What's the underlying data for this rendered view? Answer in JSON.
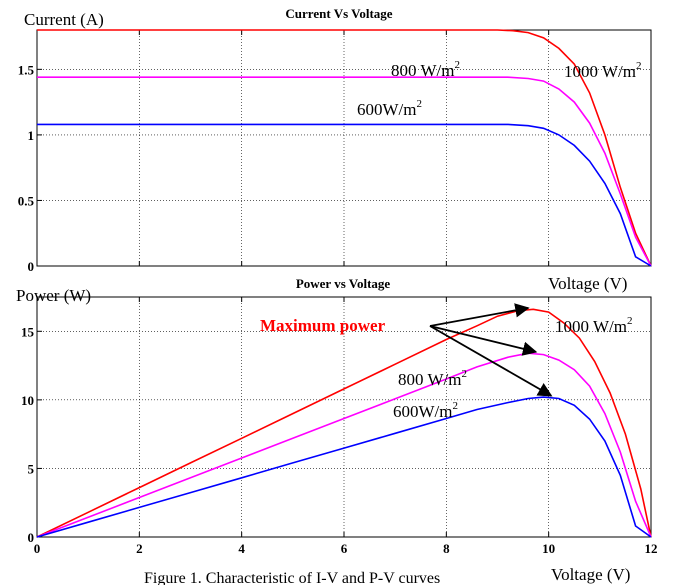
{
  "figure_caption": "Figure 1.   Characteristic of I-V and P-V curves",
  "colors": {
    "1000": "#ff0000",
    "800": "#ff00ff",
    "600": "#0000ff",
    "arrow": "#000000"
  },
  "chart_data": [
    {
      "type": "line",
      "title": "Current Vs Voltage",
      "ylabel": "Current (A)",
      "xlabel": "Voltage (V)",
      "xlim": [
        0,
        12
      ],
      "ylim": [
        0,
        1.8
      ],
      "yticks": [
        0,
        0.5,
        1,
        1.5
      ],
      "ytick_labels": [
        "0",
        "0.5",
        "1",
        "1.5"
      ],
      "grid": true,
      "annotations": [
        {
          "text": "1000 W/m",
          "sup": "2",
          "series": "1000"
        },
        {
          "text": "800 W/m",
          "sup": "2",
          "series": "800"
        },
        {
          "text": "600W/m",
          "sup": "2",
          "series": "600"
        }
      ],
      "series": [
        {
          "key": "1000",
          "color": "#ff0000",
          "points": [
            [
              0,
              1.8
            ],
            [
              9.0,
              1.8
            ],
            [
              9.3,
              1.795
            ],
            [
              9.6,
              1.78
            ],
            [
              9.9,
              1.74
            ],
            [
              10.2,
              1.66
            ],
            [
              10.5,
              1.54
            ],
            [
              10.8,
              1.32
            ],
            [
              11.1,
              1.0
            ],
            [
              11.4,
              0.6
            ],
            [
              11.7,
              0.25
            ],
            [
              12.0,
              0
            ]
          ]
        },
        {
          "key": "800",
          "color": "#ff00ff",
          "points": [
            [
              0,
              1.44
            ],
            [
              9.2,
              1.44
            ],
            [
              9.6,
              1.43
            ],
            [
              9.9,
              1.41
            ],
            [
              10.2,
              1.35
            ],
            [
              10.5,
              1.25
            ],
            [
              10.8,
              1.09
            ],
            [
              11.1,
              0.86
            ],
            [
              11.4,
              0.55
            ],
            [
              11.7,
              0.22
            ],
            [
              12.0,
              0
            ]
          ]
        },
        {
          "key": "600",
          "color": "#0000ff",
          "points": [
            [
              0,
              1.08
            ],
            [
              9.2,
              1.08
            ],
            [
              9.6,
              1.07
            ],
            [
              9.9,
              1.05
            ],
            [
              10.2,
              1.0
            ],
            [
              10.5,
              0.92
            ],
            [
              10.8,
              0.8
            ],
            [
              11.1,
              0.63
            ],
            [
              11.4,
              0.4
            ],
            [
              11.7,
              0.07
            ],
            [
              12.0,
              0
            ]
          ]
        }
      ]
    },
    {
      "type": "line",
      "title": "Power vs Voltage",
      "ylabel": "Power (W)",
      "xlabel": "Voltage (V)",
      "xlim": [
        0,
        12
      ],
      "ylim": [
        0,
        17.5
      ],
      "xticks": [
        0,
        2,
        4,
        6,
        8,
        10,
        12
      ],
      "xtick_labels": [
        "0",
        "2",
        "4",
        "6",
        "8",
        "10",
        "12"
      ],
      "yticks": [
        0,
        5,
        10,
        15
      ],
      "ytick_labels": [
        "0",
        "5",
        "10",
        "15"
      ],
      "grid": true,
      "annotations": [
        {
          "text": "Maximum power",
          "color": "#ff0000"
        },
        {
          "text": "1000 W/m",
          "sup": "2",
          "series": "1000"
        },
        {
          "text": "800 W/m",
          "sup": "2",
          "series": "800"
        },
        {
          "text": "600W/m",
          "sup": "2",
          "series": "600"
        }
      ],
      "max_power_points": [
        [
          9.6,
          16.7
        ],
        [
          9.75,
          13.5
        ],
        [
          10.05,
          10.3
        ]
      ],
      "series": [
        {
          "key": "1000",
          "color": "#ff0000",
          "points": [
            [
              0,
              0
            ],
            [
              1,
              1.8
            ],
            [
              2,
              3.6
            ],
            [
              3,
              5.4
            ],
            [
              4,
              7.2
            ],
            [
              5,
              9.0
            ],
            [
              6,
              10.8
            ],
            [
              7,
              12.6
            ],
            [
              8,
              14.4
            ],
            [
              8.6,
              15.4
            ],
            [
              9,
              16.1
            ],
            [
              9.4,
              16.5
            ],
            [
              9.7,
              16.6
            ],
            [
              10.0,
              16.4
            ],
            [
              10.3,
              15.6
            ],
            [
              10.6,
              14.5
            ],
            [
              10.9,
              12.8
            ],
            [
              11.2,
              10.5
            ],
            [
              11.5,
              7.5
            ],
            [
              11.8,
              3.5
            ],
            [
              12.0,
              0
            ]
          ]
        },
        {
          "key": "800",
          "color": "#ff00ff",
          "points": [
            [
              0,
              0
            ],
            [
              1,
              1.44
            ],
            [
              2,
              2.88
            ],
            [
              3,
              4.32
            ],
            [
              4,
              5.76
            ],
            [
              5,
              7.2
            ],
            [
              6,
              8.64
            ],
            [
              7,
              10.08
            ],
            [
              8,
              11.52
            ],
            [
              8.6,
              12.4
            ],
            [
              9.2,
              13.1
            ],
            [
              9.6,
              13.4
            ],
            [
              9.9,
              13.3
            ],
            [
              10.2,
              12.9
            ],
            [
              10.5,
              12.2
            ],
            [
              10.8,
              11.0
            ],
            [
              11.1,
              9.0
            ],
            [
              11.4,
              6.2
            ],
            [
              11.7,
              2.6
            ],
            [
              12.0,
              0
            ]
          ]
        },
        {
          "key": "600",
          "color": "#0000ff",
          "points": [
            [
              0,
              0
            ],
            [
              1,
              1.08
            ],
            [
              2,
              2.16
            ],
            [
              3,
              3.24
            ],
            [
              4,
              4.32
            ],
            [
              5,
              5.4
            ],
            [
              6,
              6.48
            ],
            [
              7,
              7.56
            ],
            [
              8,
              8.64
            ],
            [
              8.6,
              9.3
            ],
            [
              9.2,
              9.8
            ],
            [
              9.6,
              10.1
            ],
            [
              9.9,
              10.2
            ],
            [
              10.2,
              10.1
            ],
            [
              10.5,
              9.6
            ],
            [
              10.8,
              8.6
            ],
            [
              11.1,
              7.0
            ],
            [
              11.4,
              4.5
            ],
            [
              11.7,
              0.8
            ],
            [
              12.0,
              0
            ]
          ]
        }
      ]
    }
  ]
}
